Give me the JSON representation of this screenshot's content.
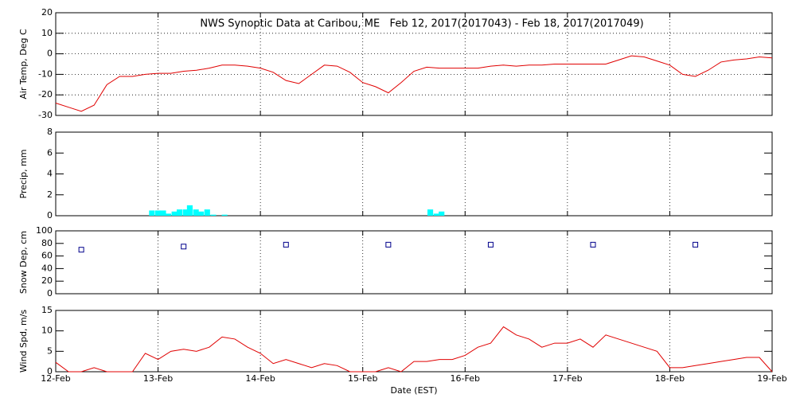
{
  "chart_data": [
    {
      "type": "line",
      "title": "NWS Synoptic Data at Caribou, ME   Feb 12, 2017(2017043) - Feb 18, 2017(2017049)",
      "ylabel": "Air Temp, Deg C",
      "color": "#e00000",
      "xgrid": true,
      "ygrid": true,
      "xlim": [
        0,
        7
      ],
      "xticks": [
        0,
        1,
        2,
        3,
        4,
        5,
        6,
        7
      ],
      "ylim": [
        -30,
        20
      ],
      "yticks": [
        -30,
        -20,
        -10,
        0,
        10,
        20
      ],
      "x": [
        0,
        0.125,
        0.25,
        0.375,
        0.5,
        0.625,
        0.75,
        0.875,
        1,
        1.125,
        1.25,
        1.375,
        1.5,
        1.625,
        1.75,
        1.875,
        2,
        2.125,
        2.25,
        2.375,
        2.5,
        2.625,
        2.75,
        2.875,
        3,
        3.125,
        3.25,
        3.375,
        3.5,
        3.625,
        3.75,
        3.875,
        4,
        4.125,
        4.25,
        4.375,
        4.5,
        4.625,
        4.75,
        4.875,
        5,
        5.125,
        5.25,
        5.375,
        5.5,
        5.625,
        5.75,
        5.875,
        6,
        6.125,
        6.25,
        6.375,
        6.5,
        6.625,
        6.75,
        6.875,
        7
      ],
      "values": [
        -24,
        -26,
        -28,
        -25,
        -15,
        -11,
        -11,
        -10,
        -9.5,
        -9.5,
        -8.5,
        -8,
        -7,
        -5.5,
        -5.5,
        -6,
        -7,
        -9,
        -13,
        -14.5,
        -10,
        -5.5,
        -6,
        -9,
        -14,
        -16,
        -19,
        -14,
        -8.5,
        -6.5,
        -7,
        -7,
        -7,
        -7,
        -6,
        -5.5,
        -6,
        -5.5,
        -5.5,
        -5,
        -5,
        -5,
        -5,
        -5,
        -3,
        -1,
        -1.5,
        -3.5,
        -5.5,
        -10,
        -11,
        -8,
        -4,
        -3,
        -2.5,
        -1.5,
        -2
      ]
    },
    {
      "type": "bar",
      "ylabel": "Precip, mm",
      "color": "#00ffff",
      "xgrid": true,
      "ygrid": false,
      "xlim": [
        0,
        7
      ],
      "xticks": [
        0,
        1,
        2,
        3,
        4,
        5,
        6,
        7
      ],
      "ylim": [
        0,
        8
      ],
      "yticks": [
        0,
        2,
        4,
        6,
        8
      ],
      "x": [
        0.94,
        1.0,
        1.05,
        1.1,
        1.16,
        1.21,
        1.27,
        1.31,
        1.37,
        1.42,
        1.48,
        1.54,
        1.65,
        3.66,
        3.72,
        3.77
      ],
      "values": [
        0.5,
        0.5,
        0.5,
        0.2,
        0.4,
        0.6,
        0.6,
        1.0,
        0.6,
        0.4,
        0.6,
        0.1,
        0.1,
        0.6,
        0.2,
        0.4
      ]
    },
    {
      "type": "scatter",
      "ylabel": "Snow Dep, cm",
      "color": "#00008b",
      "xgrid": true,
      "ygrid": false,
      "xlim": [
        0,
        7
      ],
      "xticks": [
        0,
        1,
        2,
        3,
        4,
        5,
        6,
        7
      ],
      "ylim": [
        0,
        100
      ],
      "yticks": [
        0,
        20,
        40,
        60,
        80,
        100
      ],
      "x": [
        0.25,
        1.25,
        2.25,
        3.25,
        4.25,
        5.25,
        6.25
      ],
      "values": [
        70,
        75,
        78,
        78,
        78,
        78,
        78
      ]
    },
    {
      "type": "line",
      "ylabel": "Wind Spd, m/s",
      "xlabel": "Date (EST)",
      "color": "#e00000",
      "xgrid": true,
      "ygrid": false,
      "xlim": [
        0,
        7
      ],
      "xticks": [
        {
          "value": 0,
          "label": "12-Feb"
        },
        {
          "value": 1,
          "label": "13-Feb"
        },
        {
          "value": 2,
          "label": "14-Feb"
        },
        {
          "value": 3,
          "label": "15-Feb"
        },
        {
          "value": 4,
          "label": "16-Feb"
        },
        {
          "value": 5,
          "label": "17-Feb"
        },
        {
          "value": 6,
          "label": "18-Feb"
        },
        {
          "value": 7,
          "label": "19-Feb"
        }
      ],
      "ylim": [
        0,
        15
      ],
      "yticks": [
        0,
        5,
        10,
        15
      ],
      "x": [
        0,
        0.125,
        0.25,
        0.375,
        0.5,
        0.625,
        0.75,
        0.875,
        1,
        1.125,
        1.25,
        1.375,
        1.5,
        1.625,
        1.75,
        1.875,
        2,
        2.125,
        2.25,
        2.375,
        2.5,
        2.625,
        2.75,
        2.875,
        3,
        3.125,
        3.25,
        3.375,
        3.5,
        3.625,
        3.75,
        3.875,
        4,
        4.125,
        4.25,
        4.375,
        4.5,
        4.625,
        4.75,
        4.875,
        5,
        5.125,
        5.25,
        5.375,
        5.5,
        5.625,
        5.75,
        5.875,
        6,
        6.125,
        6.25,
        6.375,
        6.5,
        6.625,
        6.75,
        6.875,
        7
      ],
      "values": [
        2.3,
        0,
        0,
        1,
        0,
        0,
        0,
        4.5,
        3,
        5,
        5.5,
        5,
        6,
        8.5,
        8,
        6,
        4.5,
        2,
        3,
        2,
        1,
        2,
        1.5,
        0,
        0,
        0,
        1,
        0,
        2.5,
        2.5,
        3,
        3,
        4,
        6,
        7,
        11,
        9,
        8,
        6,
        7,
        7,
        8,
        6,
        9,
        8,
        7,
        6,
        5,
        1,
        1,
        1.5,
        2,
        2.5,
        3,
        3.5,
        3.5,
        0
      ]
    }
  ]
}
